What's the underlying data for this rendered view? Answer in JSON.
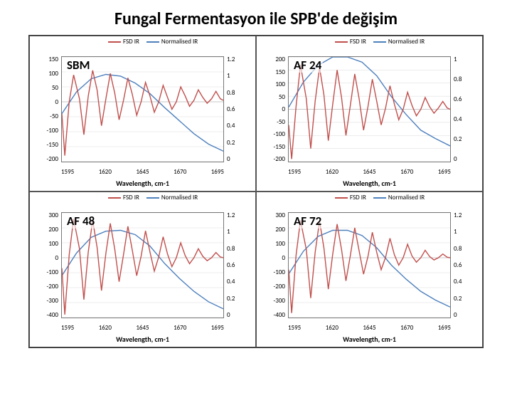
{
  "title": "Fungal Fermentasyon ile SPB'de değişim",
  "legend_fsd": "FSD IR",
  "legend_norm": "Normalised IR",
  "xlabel": "Wavelength, cm-1",
  "colors": {
    "fsd": "#c0504d",
    "norm": "#4f81bd",
    "grid": "#d9d9d9",
    "axis": "#7f7f7f",
    "zero": "#bfbfbf"
  },
  "xlim": [
    1590,
    1700
  ],
  "xticks": [
    1595,
    1620,
    1645,
    1670,
    1695
  ],
  "y2lim": [
    0,
    1.2
  ],
  "panels": [
    {
      "key": "sbm",
      "label": "SBM",
      "y1lim": [
        -200,
        150
      ],
      "y1ticks": [
        -200,
        -150,
        -100,
        -50,
        0,
        50,
        100,
        150
      ],
      "y2ticks": [
        0,
        0.2,
        0.4,
        0.6,
        0.8,
        1,
        1.2
      ],
      "fsd": [
        [
          1590,
          -40
        ],
        [
          1592,
          -180
        ],
        [
          1595,
          0
        ],
        [
          1598,
          90
        ],
        [
          1602,
          10
        ],
        [
          1605,
          -110
        ],
        [
          1608,
          20
        ],
        [
          1611,
          105
        ],
        [
          1614,
          40
        ],
        [
          1617,
          -80
        ],
        [
          1620,
          10
        ],
        [
          1623,
          95
        ],
        [
          1626,
          30
        ],
        [
          1629,
          -60
        ],
        [
          1632,
          5
        ],
        [
          1635,
          80
        ],
        [
          1638,
          25
        ],
        [
          1641,
          -45
        ],
        [
          1644,
          0
        ],
        [
          1647,
          65
        ],
        [
          1650,
          20
        ],
        [
          1653,
          -35
        ],
        [
          1656,
          0
        ],
        [
          1659,
          55
        ],
        [
          1662,
          15
        ],
        [
          1665,
          -25
        ],
        [
          1668,
          0
        ],
        [
          1671,
          50
        ],
        [
          1674,
          20
        ],
        [
          1677,
          -15
        ],
        [
          1680,
          5
        ],
        [
          1683,
          40
        ],
        [
          1686,
          15
        ],
        [
          1689,
          -5
        ],
        [
          1692,
          10
        ],
        [
          1695,
          35
        ],
        [
          1698,
          10
        ],
        [
          1700,
          5
        ]
      ],
      "norm": [
        [
          1590,
          0.55
        ],
        [
          1600,
          0.8
        ],
        [
          1610,
          0.95
        ],
        [
          1620,
          1.0
        ],
        [
          1630,
          0.98
        ],
        [
          1640,
          0.9
        ],
        [
          1650,
          0.78
        ],
        [
          1660,
          0.62
        ],
        [
          1670,
          0.47
        ],
        [
          1680,
          0.32
        ],
        [
          1690,
          0.2
        ],
        [
          1700,
          0.12
        ]
      ]
    },
    {
      "key": "af24",
      "label": "AF 24",
      "y1lim": [
        -200,
        200
      ],
      "y1ticks": [
        -200,
        -150,
        -100,
        -50,
        0,
        50,
        100,
        150,
        200
      ],
      "y2ticks": [
        0,
        0.2,
        0.4,
        0.6,
        0.8,
        1
      ],
      "y2lim_override": [
        0,
        1
      ],
      "fsd": [
        [
          1590,
          -60
        ],
        [
          1592,
          -190
        ],
        [
          1595,
          10
        ],
        [
          1598,
          170
        ],
        [
          1602,
          40
        ],
        [
          1605,
          -150
        ],
        [
          1608,
          30
        ],
        [
          1611,
          160
        ],
        [
          1614,
          55
        ],
        [
          1617,
          -120
        ],
        [
          1620,
          20
        ],
        [
          1623,
          150
        ],
        [
          1626,
          45
        ],
        [
          1629,
          -100
        ],
        [
          1632,
          15
        ],
        [
          1635,
          135
        ],
        [
          1638,
          40
        ],
        [
          1641,
          -80
        ],
        [
          1644,
          10
        ],
        [
          1647,
          115
        ],
        [
          1650,
          30
        ],
        [
          1653,
          -60
        ],
        [
          1656,
          5
        ],
        [
          1659,
          90
        ],
        [
          1662,
          20
        ],
        [
          1665,
          -40
        ],
        [
          1668,
          0
        ],
        [
          1671,
          65
        ],
        [
          1674,
          15
        ],
        [
          1677,
          -25
        ],
        [
          1680,
          0
        ],
        [
          1683,
          45
        ],
        [
          1686,
          10
        ],
        [
          1689,
          -15
        ],
        [
          1692,
          5
        ],
        [
          1695,
          30
        ],
        [
          1698,
          5
        ],
        [
          1700,
          0
        ]
      ],
      "norm": [
        [
          1590,
          0.52
        ],
        [
          1600,
          0.76
        ],
        [
          1610,
          0.92
        ],
        [
          1620,
          1.0
        ],
        [
          1630,
          1.0
        ],
        [
          1640,
          0.95
        ],
        [
          1650,
          0.82
        ],
        [
          1660,
          0.62
        ],
        [
          1670,
          0.45
        ],
        [
          1680,
          0.3
        ],
        [
          1690,
          0.22
        ],
        [
          1700,
          0.15
        ]
      ]
    },
    {
      "key": "af48",
      "label": "AF 48",
      "y1lim": [
        -400,
        300
      ],
      "y1ticks": [
        -400,
        -300,
        -200,
        -100,
        0,
        100,
        200,
        300
      ],
      "y2ticks": [
        0,
        0.2,
        0.4,
        0.6,
        0.8,
        1,
        1.2
      ],
      "fsd": [
        [
          1590,
          -70
        ],
        [
          1592,
          -380
        ],
        [
          1595,
          20
        ],
        [
          1598,
          260
        ],
        [
          1602,
          60
        ],
        [
          1605,
          -280
        ],
        [
          1608,
          40
        ],
        [
          1611,
          250
        ],
        [
          1614,
          70
        ],
        [
          1617,
          -220
        ],
        [
          1620,
          30
        ],
        [
          1623,
          230
        ],
        [
          1626,
          60
        ],
        [
          1629,
          -160
        ],
        [
          1632,
          20
        ],
        [
          1635,
          210
        ],
        [
          1638,
          50
        ],
        [
          1641,
          -120
        ],
        [
          1644,
          10
        ],
        [
          1647,
          180
        ],
        [
          1650,
          40
        ],
        [
          1653,
          -90
        ],
        [
          1656,
          5
        ],
        [
          1659,
          140
        ],
        [
          1662,
          25
        ],
        [
          1665,
          -60
        ],
        [
          1668,
          0
        ],
        [
          1671,
          100
        ],
        [
          1674,
          15
        ],
        [
          1677,
          -40
        ],
        [
          1680,
          0
        ],
        [
          1683,
          60
        ],
        [
          1686,
          10
        ],
        [
          1689,
          -20
        ],
        [
          1692,
          0
        ],
        [
          1695,
          35
        ],
        [
          1698,
          5
        ],
        [
          1700,
          0
        ]
      ],
      "norm": [
        [
          1590,
          0.48
        ],
        [
          1600,
          0.74
        ],
        [
          1610,
          0.92
        ],
        [
          1620,
          0.99
        ],
        [
          1630,
          1.0
        ],
        [
          1640,
          0.95
        ],
        [
          1650,
          0.82
        ],
        [
          1660,
          0.62
        ],
        [
          1670,
          0.45
        ],
        [
          1680,
          0.3
        ],
        [
          1690,
          0.18
        ],
        [
          1700,
          0.1
        ]
      ]
    },
    {
      "key": "af72",
      "label": "AF 72",
      "y1lim": [
        -400,
        300
      ],
      "y1ticks": [
        -400,
        -300,
        -200,
        -100,
        0,
        100,
        200,
        300
      ],
      "y2ticks": [
        0,
        0.2,
        0.4,
        0.6,
        0.8,
        1,
        1.2
      ],
      "fsd": [
        [
          1590,
          -80
        ],
        [
          1592,
          -370
        ],
        [
          1595,
          15
        ],
        [
          1598,
          250
        ],
        [
          1602,
          55
        ],
        [
          1605,
          -270
        ],
        [
          1608,
          35
        ],
        [
          1611,
          245
        ],
        [
          1614,
          65
        ],
        [
          1617,
          -210
        ],
        [
          1620,
          25
        ],
        [
          1623,
          225
        ],
        [
          1626,
          55
        ],
        [
          1629,
          -155
        ],
        [
          1632,
          15
        ],
        [
          1635,
          200
        ],
        [
          1638,
          45
        ],
        [
          1641,
          -110
        ],
        [
          1644,
          8
        ],
        [
          1647,
          170
        ],
        [
          1650,
          35
        ],
        [
          1653,
          -80
        ],
        [
          1656,
          3
        ],
        [
          1659,
          130
        ],
        [
          1662,
          20
        ],
        [
          1665,
          -50
        ],
        [
          1668,
          0
        ],
        [
          1671,
          90
        ],
        [
          1674,
          12
        ],
        [
          1677,
          -30
        ],
        [
          1680,
          0
        ],
        [
          1683,
          50
        ],
        [
          1686,
          8
        ],
        [
          1689,
          -15
        ],
        [
          1692,
          0
        ],
        [
          1695,
          25
        ],
        [
          1698,
          3
        ],
        [
          1700,
          0
        ]
      ],
      "norm": [
        [
          1590,
          0.5
        ],
        [
          1600,
          0.76
        ],
        [
          1610,
          0.93
        ],
        [
          1620,
          1.0
        ],
        [
          1630,
          1.0
        ],
        [
          1640,
          0.94
        ],
        [
          1650,
          0.8
        ],
        [
          1660,
          0.6
        ],
        [
          1670,
          0.44
        ],
        [
          1680,
          0.3
        ],
        [
          1690,
          0.2
        ],
        [
          1700,
          0.12
        ]
      ]
    }
  ]
}
